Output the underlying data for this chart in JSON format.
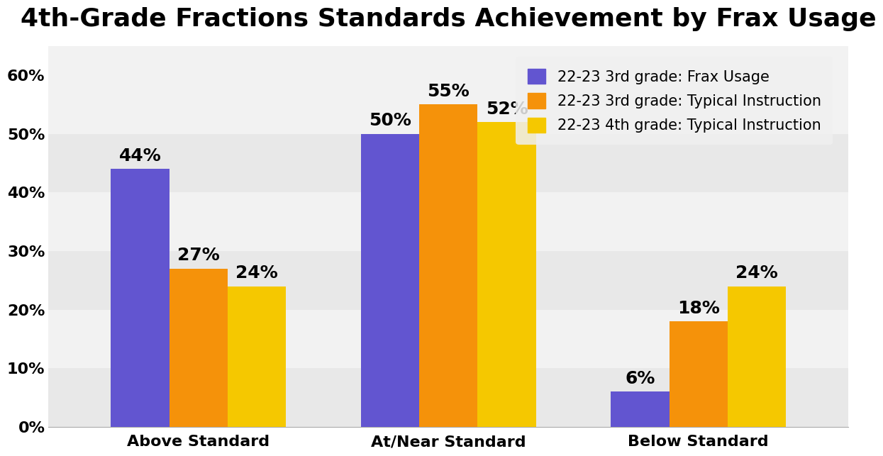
{
  "title": "4th-Grade Fractions Standards Achievement by Frax Usage",
  "categories": [
    "Above Standard",
    "At/Near Standard",
    "Below Standard"
  ],
  "series": [
    {
      "label": "22-23 3rd grade: Frax Usage",
      "color": "#6255d0",
      "values": [
        44,
        50,
        6
      ]
    },
    {
      "label": "22-23 3rd grade: Typical Instruction",
      "color": "#f5920a",
      "values": [
        27,
        55,
        18
      ]
    },
    {
      "label": "22-23 4th grade: Typical Instruction",
      "color": "#f5c800",
      "values": [
        24,
        52,
        24
      ]
    }
  ],
  "ylim": [
    0,
    65
  ],
  "yticks": [
    0,
    10,
    20,
    30,
    40,
    50,
    60
  ],
  "ytick_labels": [
    "0%",
    "10%",
    "20%",
    "30%",
    "40%",
    "50%",
    "60%"
  ],
  "background_color": "#ffffff",
  "band_colors": [
    "#e8e8e8",
    "#f2f2f2"
  ],
  "title_fontsize": 26,
  "bar_width": 0.28,
  "tick_fontsize": 16,
  "legend_fontsize": 15,
  "annotation_fontsize": 18
}
